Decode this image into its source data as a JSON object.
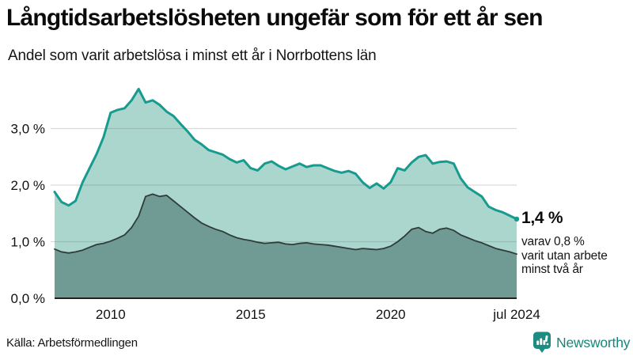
{
  "header": {
    "title": "Långtidsarbetslösheten ungefär som för ett år sen",
    "subtitle": "Andel som varit arbetslösa i minst ett år i Norrbottens län"
  },
  "chart_data": {
    "type": "area",
    "title": "Långtidsarbetslösheten ungefär som för ett år sen",
    "subtitle": "Andel som varit arbetslösa i minst ett år i Norrbottens län",
    "xlabel": "",
    "ylabel": "",
    "xlim": [
      2008,
      2024.5
    ],
    "ylim": [
      0,
      3.85
    ],
    "grid": "horizontal",
    "legend": "none",
    "x": [
      2008,
      2008.25,
      2008.5,
      2008.75,
      2009,
      2009.25,
      2009.5,
      2009.75,
      2010,
      2010.25,
      2010.5,
      2010.75,
      2011,
      2011.25,
      2011.5,
      2011.75,
      2012,
      2012.25,
      2012.5,
      2012.75,
      2013,
      2013.25,
      2013.5,
      2013.75,
      2014,
      2014.25,
      2014.5,
      2014.75,
      2015,
      2015.25,
      2015.5,
      2015.75,
      2016,
      2016.25,
      2016.5,
      2016.75,
      2017,
      2017.25,
      2017.5,
      2017.75,
      2018,
      2018.25,
      2018.5,
      2018.75,
      2019,
      2019.25,
      2019.5,
      2019.75,
      2020,
      2020.25,
      2020.5,
      2020.75,
      2021,
      2021.25,
      2021.5,
      2021.75,
      2022,
      2022.25,
      2022.5,
      2022.75,
      2023,
      2023.25,
      2023.5,
      2023.75,
      2024,
      2024.25,
      2024.5
    ],
    "series": [
      {
        "name": "Arbetslösa minst ett år",
        "color": "#169b8e",
        "fill": "#abd6ce",
        "values": [
          1.88,
          1.7,
          1.64,
          1.72,
          2.05,
          2.3,
          2.55,
          2.85,
          3.28,
          3.33,
          3.36,
          3.5,
          3.7,
          3.46,
          3.5,
          3.42,
          3.3,
          3.22,
          3.08,
          2.95,
          2.8,
          2.72,
          2.62,
          2.58,
          2.54,
          2.46,
          2.4,
          2.44,
          2.3,
          2.26,
          2.38,
          2.42,
          2.34,
          2.28,
          2.33,
          2.38,
          2.32,
          2.35,
          2.35,
          2.3,
          2.25,
          2.22,
          2.25,
          2.2,
          2.05,
          1.95,
          2.03,
          1.94,
          2.05,
          2.3,
          2.26,
          2.4,
          2.5,
          2.53,
          2.38,
          2.41,
          2.42,
          2.38,
          2.12,
          1.96,
          1.88,
          1.8,
          1.62,
          1.56,
          1.52,
          1.46,
          1.4
        ]
      },
      {
        "name": "Arbetslösa minst två år",
        "color": "#2f3c3a",
        "fill": "#6f9b94",
        "values": [
          0.87,
          0.82,
          0.8,
          0.82,
          0.85,
          0.9,
          0.95,
          0.97,
          1.01,
          1.06,
          1.12,
          1.25,
          1.45,
          1.8,
          1.84,
          1.8,
          1.82,
          1.72,
          1.62,
          1.52,
          1.42,
          1.33,
          1.27,
          1.22,
          1.18,
          1.12,
          1.07,
          1.04,
          1.02,
          0.99,
          0.97,
          0.98,
          0.99,
          0.96,
          0.95,
          0.97,
          0.98,
          0.96,
          0.95,
          0.94,
          0.92,
          0.9,
          0.88,
          0.86,
          0.88,
          0.87,
          0.86,
          0.88,
          0.92,
          1.0,
          1.1,
          1.22,
          1.25,
          1.18,
          1.15,
          1.22,
          1.24,
          1.2,
          1.12,
          1.07,
          1.02,
          0.98,
          0.93,
          0.88,
          0.85,
          0.82,
          0.78
        ]
      }
    ],
    "x_ticks": [
      {
        "label": "2010",
        "x": 2010
      },
      {
        "label": "2015",
        "x": 2015
      },
      {
        "label": "2020",
        "x": 2020
      },
      {
        "label": "jul 2024",
        "x": 2024.5
      }
    ],
    "y_ticks": [
      {
        "label": "0,0 %",
        "value": 0
      },
      {
        "label": "1,0 %",
        "value": 1
      },
      {
        "label": "2,0 %",
        "value": 2
      },
      {
        "label": "3,0 %",
        "value": 3
      }
    ],
    "annotation": {
      "value_label": "1,4 %",
      "detail_lines": [
        "varav 0,8 %",
        "varit utan arbete",
        "minst två år"
      ]
    }
  },
  "footer": {
    "source": "Källa: Arbetsförmedlingen",
    "brand": "Newsworthy"
  },
  "colors": {
    "accent": "#169b8e",
    "fill_light": "#abd6ce",
    "fill_dark": "#6f9b94",
    "line_dark": "#2f3c3a",
    "grid": "#d8d8d8",
    "baseline": "#222222",
    "brand": "#17877c",
    "text": "#111111"
  }
}
